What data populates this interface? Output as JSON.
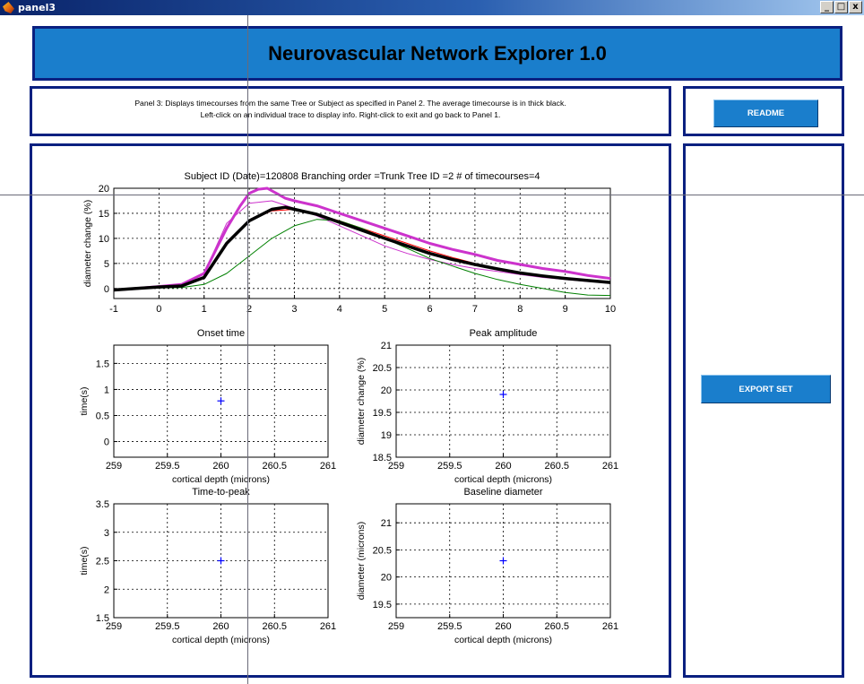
{
  "window": {
    "title": "panel3",
    "minimize": "_",
    "maximize": "□",
    "close": "x"
  },
  "header": {
    "title": "Neurovascular Network Explorer 1.0"
  },
  "info": {
    "line1": "Panel 3:  Displays timecourses from the same Tree or Subject as specified in Panel 2. The average timecourse is in thick black.",
    "line2": "Left-click on an individual trace to display info. Right-click to exit and go back to Panel 1."
  },
  "buttons": {
    "readme": "README",
    "export": "EXPORT SET"
  },
  "colors": {
    "accent": "#1a7ecc",
    "border": "#0a2080",
    "magenta": "#cc33cc",
    "marker": "#0000ff"
  },
  "chart_data": [
    {
      "type": "line",
      "title": "Subject ID (Date)=120808  Branching order  =Trunk  Tree ID =2   # of timecourses=4",
      "xlabel": "",
      "ylabel": "diameter change (%)",
      "xlim": [
        -1,
        10
      ],
      "ylim": [
        -2,
        20
      ],
      "xticks": [
        -1,
        0,
        1,
        2,
        3,
        4,
        5,
        6,
        7,
        8,
        9,
        10
      ],
      "yticks": [
        0,
        5,
        10,
        15,
        20
      ],
      "grid": true,
      "series": [
        {
          "color": "#cc33cc",
          "width": 3,
          "x": [
            -1,
            -0.5,
            0,
            0.5,
            1,
            1.5,
            1.8,
            2,
            2.2,
            2.4,
            2.6,
            2.8,
            3,
            3.5,
            4,
            4.5,
            5,
            5.5,
            6,
            6.5,
            7,
            7.5,
            8,
            8.5,
            9,
            9.5,
            10
          ],
          "y": [
            -0.3,
            0,
            0.4,
            0.8,
            3,
            12,
            16.5,
            19,
            19.8,
            20,
            19,
            18,
            17.5,
            16.5,
            15,
            13.5,
            12,
            10.5,
            9,
            7.8,
            6.8,
            5.6,
            4.8,
            4,
            3.4,
            2.6,
            2
          ]
        },
        {
          "color": "#cc33cc",
          "width": 1,
          "x": [
            -1,
            -0.5,
            0,
            0.5,
            1,
            1.5,
            2,
            2.5,
            3,
            3.5,
            4,
            4.5,
            5,
            5.5,
            6,
            6.5,
            7,
            7.5,
            8,
            8.5,
            9,
            9.5,
            10
          ],
          "y": [
            -0.3,
            0,
            0.3,
            0.6,
            3,
            13,
            17,
            17.5,
            16,
            14.5,
            12.5,
            10.5,
            8.5,
            7,
            5.8,
            4.8,
            4,
            3.4,
            2.8,
            2.2,
            1.8,
            1.4,
            1.2
          ]
        },
        {
          "color": "#ff0000",
          "width": 1,
          "x": [
            -1,
            -0.5,
            0,
            0.5,
            1,
            1.5,
            2,
            2.5,
            3,
            3.5,
            4,
            4.5,
            5,
            5.5,
            6,
            6.5,
            7,
            7.5,
            8,
            8.5,
            9,
            9.5,
            10
          ],
          "y": [
            -0.3,
            0,
            0.2,
            0.5,
            2,
            9,
            13.5,
            15.5,
            15.8,
            14.8,
            13.5,
            12,
            10.5,
            9,
            7.5,
            6.2,
            5,
            4,
            3.2,
            2.5,
            2,
            1.6,
            1.3
          ]
        },
        {
          "color": "#008000",
          "width": 1,
          "x": [
            -1,
            -0.5,
            0,
            0.5,
            1,
            1.5,
            2,
            2.5,
            3,
            3.5,
            4,
            4.5,
            5,
            5.5,
            6,
            6.5,
            7,
            7.5,
            8,
            8.5,
            9,
            9.5,
            10
          ],
          "y": [
            -0.2,
            0,
            0.1,
            0.2,
            0.8,
            3,
            6.5,
            10,
            12.5,
            13.8,
            13.5,
            12,
            10,
            8,
            6,
            4.5,
            3,
            1.8,
            0.8,
            0,
            -0.8,
            -1.3,
            -1.4
          ]
        },
        {
          "color": "#000000",
          "width": 3.5,
          "x": [
            -1,
            -0.5,
            0,
            0.5,
            1,
            1.5,
            2,
            2.5,
            2.8,
            3,
            3.5,
            4,
            4.5,
            5,
            5.5,
            6,
            6.5,
            7,
            7.5,
            8,
            8.5,
            9,
            9.5,
            10
          ],
          "y": [
            -0.3,
            0,
            0.3,
            0.5,
            2.2,
            9,
            13.5,
            15.8,
            16.2,
            15.8,
            14.8,
            13.2,
            11.6,
            10,
            8.5,
            7,
            5.8,
            4.8,
            3.9,
            3.1,
            2.5,
            2,
            1.6,
            1.2
          ]
        }
      ]
    },
    {
      "type": "scatter",
      "title": "Onset time",
      "xlabel": "cortical depth (microns)",
      "ylabel": "time(s)",
      "xlim": [
        259,
        261
      ],
      "ylim": [
        -0.3,
        1.85
      ],
      "xticks": [
        259,
        259.5,
        260,
        260.5,
        261
      ],
      "yticks": [
        0,
        0.5,
        1,
        1.5
      ],
      "grid": true,
      "points": [
        {
          "x": 260,
          "y": 0.78
        }
      ]
    },
    {
      "type": "scatter",
      "title": "Peak amplitude",
      "xlabel": "cortical depth (microns)",
      "ylabel": "diameter change (%)",
      "xlim": [
        259,
        261
      ],
      "ylim": [
        18.5,
        21
      ],
      "xticks": [
        259,
        259.5,
        260,
        260.5,
        261
      ],
      "yticks": [
        18.5,
        19,
        19.5,
        20,
        20.5,
        21
      ],
      "grid": true,
      "points": [
        {
          "x": 260,
          "y": 19.9
        }
      ]
    },
    {
      "type": "scatter",
      "title": "Time-to-peak",
      "xlabel": "cortical depth (microns)",
      "ylabel": "time(s)",
      "xlim": [
        259,
        261
      ],
      "ylim": [
        1.5,
        3.5
      ],
      "xticks": [
        259,
        259.5,
        260,
        260.5,
        261
      ],
      "yticks": [
        1.5,
        2,
        2.5,
        3,
        3.5
      ],
      "grid": true,
      "points": [
        {
          "x": 260,
          "y": 2.5
        }
      ]
    },
    {
      "type": "scatter",
      "title": "Baseline diameter",
      "xlabel": "cortical depth (microns)",
      "ylabel": "diameter (microns)",
      "xlim": [
        259,
        261
      ],
      "ylim": [
        19.25,
        21.35
      ],
      "xticks": [
        259,
        259.5,
        260,
        260.5,
        261
      ],
      "yticks": [
        19.5,
        20,
        20.5,
        21
      ],
      "grid": true,
      "points": [
        {
          "x": 260,
          "y": 20.3
        }
      ]
    }
  ]
}
